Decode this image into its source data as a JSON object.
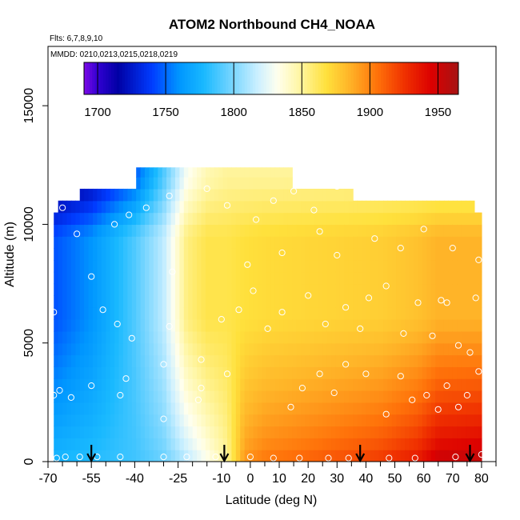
{
  "chart_data": {
    "type": "heatmap",
    "title": "ATOM2 Northbound CH4_NOAA",
    "subtitle_flights": "Flts: 6,7,8,9,10",
    "subtitle_dates": "MMDD: 0210,0213,0215,0218,0219",
    "xlabel": "Latitude (deg N)",
    "ylabel": "Altitude (m)",
    "xlim": [
      -70,
      85
    ],
    "ylim": [
      0,
      17500
    ],
    "x_ticks": [
      -70,
      -55,
      -40,
      -25,
      -10,
      0,
      10,
      20,
      30,
      40,
      50,
      60,
      70,
      80
    ],
    "x_tick_labels": [
      "-70",
      "-55",
      "-40",
      "-25",
      "-10",
      "0",
      "10",
      "20",
      "30",
      "40",
      "50",
      "60",
      "70",
      "80"
    ],
    "x_minor_ticks": [
      -65,
      -60,
      -50,
      -45,
      -35,
      -30,
      -20,
      -15,
      -5,
      5,
      15,
      25,
      35,
      45,
      55,
      65,
      75,
      85
    ],
    "y_ticks": [
      0,
      5000,
      10000,
      15000
    ],
    "y_tick_labels": [
      "0",
      "5000",
      "10000",
      "15000"
    ],
    "colorbar": {
      "min": 1690,
      "max": 1965,
      "ticks": [
        1700,
        1750,
        1800,
        1850,
        1900,
        1950
      ],
      "tick_labels": [
        "1700",
        "1750",
        "1800",
        "1850",
        "1900",
        "1950"
      ]
    },
    "field_coverage": [
      {
        "lat_min": -68,
        "lat_max": 80,
        "alt_max": 10500
      },
      {
        "lat_min": -66,
        "lat_max": 77,
        "alt_max": 11000
      },
      {
        "lat_min": -59,
        "lat_max": 35,
        "alt_max": 11500
      },
      {
        "lat_min": -39,
        "lat_max": 15,
        "alt_max": 12400
      }
    ],
    "field_model": {
      "description": "CH4 mixing ratio (ppb) vs latitude and altitude",
      "lat_points": [
        -70,
        -55,
        -40,
        -30,
        -22,
        -15,
        -8,
        -2,
        5,
        20,
        45,
        58,
        65,
        80
      ],
      "surface_ppb": [
        1778,
        1782,
        1786,
        1795,
        1812,
        1830,
        1850,
        1895,
        1905,
        1912,
        1925,
        1938,
        1955,
        1960
      ],
      "upper_ppb": [
        1742,
        1760,
        1790,
        1815,
        1855,
        1865,
        1865,
        1868,
        1870,
        1872,
        1875,
        1880,
        1885,
        1885
      ],
      "top_edge_ppb": [
        1700,
        1715,
        1745,
        1790,
        1830,
        1845,
        1850,
        1850,
        1850,
        1850,
        1850,
        1850,
        1850,
        1850
      ]
    },
    "sample_points": [
      {
        "lat": -67,
        "alt": 150
      },
      {
        "lat": -64,
        "alt": 200
      },
      {
        "lat": -59,
        "alt": 200
      },
      {
        "lat": -53,
        "alt": 200
      },
      {
        "lat": -45,
        "alt": 200
      },
      {
        "lat": -30,
        "alt": 200
      },
      {
        "lat": -22,
        "alt": 200
      },
      {
        "lat": -12,
        "alt": 200
      },
      {
        "lat": 0,
        "alt": 200
      },
      {
        "lat": 8,
        "alt": 150
      },
      {
        "lat": 17,
        "alt": 150
      },
      {
        "lat": 27,
        "alt": 150
      },
      {
        "lat": 34,
        "alt": 150
      },
      {
        "lat": 48,
        "alt": 150
      },
      {
        "lat": 57,
        "alt": 150
      },
      {
        "lat": 71,
        "alt": 200
      },
      {
        "lat": 80,
        "alt": 300
      },
      {
        "lat": -68,
        "alt": 2800
      },
      {
        "lat": -66,
        "alt": 3000
      },
      {
        "lat": -62,
        "alt": 2700
      },
      {
        "lat": -55,
        "alt": 3200
      },
      {
        "lat": -45,
        "alt": 2800
      },
      {
        "lat": -43,
        "alt": 3500
      },
      {
        "lat": -30,
        "alt": 4100
      },
      {
        "lat": -30,
        "alt": 1800
      },
      {
        "lat": -18,
        "alt": 2600
      },
      {
        "lat": -17,
        "alt": 3100
      },
      {
        "lat": -8,
        "alt": 3700
      },
      {
        "lat": 14,
        "alt": 2300
      },
      {
        "lat": 18,
        "alt": 3100
      },
      {
        "lat": 24,
        "alt": 3700
      },
      {
        "lat": 29,
        "alt": 2900
      },
      {
        "lat": 33,
        "alt": 4100
      },
      {
        "lat": 40,
        "alt": 3700
      },
      {
        "lat": 47,
        "alt": 2000
      },
      {
        "lat": 52,
        "alt": 3600
      },
      {
        "lat": 56,
        "alt": 2600
      },
      {
        "lat": 61,
        "alt": 2800
      },
      {
        "lat": 65,
        "alt": 2200
      },
      {
        "lat": 68,
        "alt": 3200
      },
      {
        "lat": 72,
        "alt": 2300
      },
      {
        "lat": 75,
        "alt": 2800
      },
      {
        "lat": 79,
        "alt": 3800
      },
      {
        "lat": -68,
        "alt": 6300
      },
      {
        "lat": -55,
        "alt": 7800
      },
      {
        "lat": -51,
        "alt": 6400
      },
      {
        "lat": -46,
        "alt": 5800
      },
      {
        "lat": -41,
        "alt": 5200
      },
      {
        "lat": -27,
        "alt": 8000
      },
      {
        "lat": -28,
        "alt": 5700
      },
      {
        "lat": -17,
        "alt": 4300
      },
      {
        "lat": -10,
        "alt": 6000
      },
      {
        "lat": -4,
        "alt": 6400
      },
      {
        "lat": 1,
        "alt": 7200
      },
      {
        "lat": 6,
        "alt": 5600
      },
      {
        "lat": 11,
        "alt": 6300
      },
      {
        "lat": 20,
        "alt": 7000
      },
      {
        "lat": 26,
        "alt": 5800
      },
      {
        "lat": 33,
        "alt": 6500
      },
      {
        "lat": 38,
        "alt": 5600
      },
      {
        "lat": 41,
        "alt": 6900
      },
      {
        "lat": 47,
        "alt": 7400
      },
      {
        "lat": 53,
        "alt": 5400
      },
      {
        "lat": 58,
        "alt": 6700
      },
      {
        "lat": 63,
        "alt": 5300
      },
      {
        "lat": 66,
        "alt": 6800
      },
      {
        "lat": 68,
        "alt": 6700
      },
      {
        "lat": 72,
        "alt": 4900
      },
      {
        "lat": 76,
        "alt": 4600
      },
      {
        "lat": 78,
        "alt": 6900
      },
      {
        "lat": -65,
        "alt": 10700
      },
      {
        "lat": -60,
        "alt": 9600
      },
      {
        "lat": -47,
        "alt": 10000
      },
      {
        "lat": -42,
        "alt": 10400
      },
      {
        "lat": -36,
        "alt": 10700
      },
      {
        "lat": -28,
        "alt": 11200
      },
      {
        "lat": -15,
        "alt": 11500
      },
      {
        "lat": -8,
        "alt": 10800
      },
      {
        "lat": 2,
        "alt": 10200
      },
      {
        "lat": 8,
        "alt": 11000
      },
      {
        "lat": 15,
        "alt": 11400
      },
      {
        "lat": 22,
        "alt": 10600
      },
      {
        "lat": 30,
        "alt": 11600
      },
      {
        "lat": 36,
        "alt": 11800
      },
      {
        "lat": 43,
        "alt": 9400
      },
      {
        "lat": 52,
        "alt": 9000
      },
      {
        "lat": 60,
        "alt": 9800
      },
      {
        "lat": 70,
        "alt": 9000
      },
      {
        "lat": 79,
        "alt": 8500
      },
      {
        "lat": -1,
        "alt": 8300
      },
      {
        "lat": 11,
        "alt": 8800
      },
      {
        "lat": 30,
        "alt": 8700
      },
      {
        "lat": 24,
        "alt": 9700
      }
    ],
    "arrows": [
      {
        "lat": -55,
        "label": "down arrow"
      },
      {
        "lat": -9,
        "label": "down arrow"
      },
      {
        "lat": 38,
        "label": "down arrow"
      },
      {
        "lat": 76,
        "label": "down arrow"
      }
    ]
  }
}
